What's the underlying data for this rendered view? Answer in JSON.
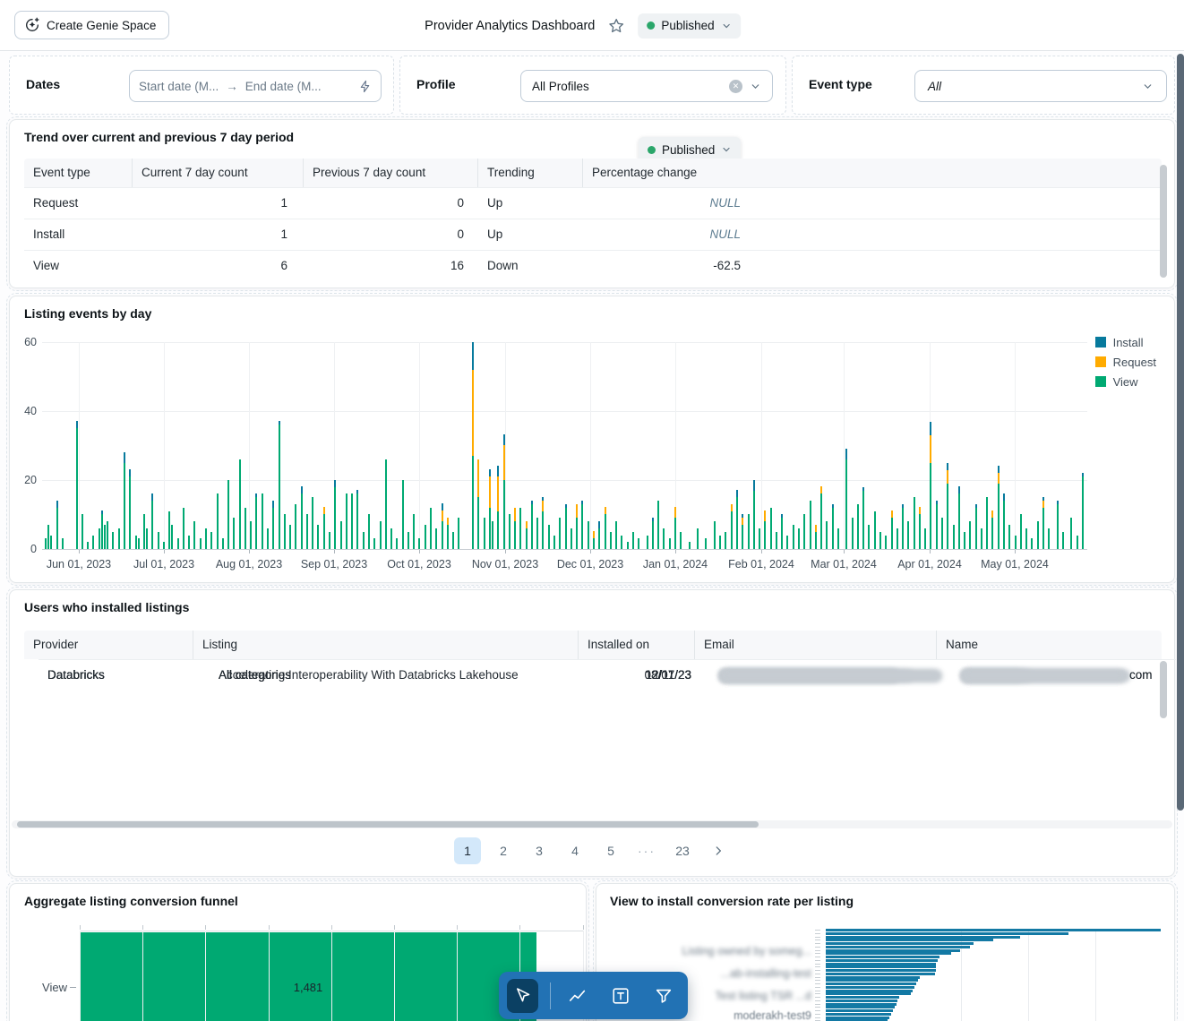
{
  "colors": {
    "green": "#00A972",
    "orange": "#FFAB00",
    "teal": "#077A9D",
    "conv_teal": "#1379A4",
    "accent_blue": "#2272B4"
  },
  "header": {
    "create_button": "Create Genie Space",
    "title": "Provider Analytics Dashboard",
    "status": "Published"
  },
  "filters": {
    "dates": {
      "label": "Dates",
      "start_placeholder": "Start date (M...",
      "end_placeholder": "End date (M...",
      "arrow": "→"
    },
    "profile": {
      "label": "Profile",
      "value": "All Profiles"
    },
    "event_type": {
      "label": "Event type",
      "value": "All"
    }
  },
  "trend": {
    "title": "Trend over current and previous 7 day period",
    "status_pill": "Published",
    "columns": [
      "Event type",
      "Current 7 day count",
      "Previous 7 day count",
      "Trending",
      "Percentage change"
    ],
    "rows": [
      {
        "event": "Request",
        "current": "1",
        "previous": "0",
        "trending": "Up",
        "change": "NULL",
        "null_change": true
      },
      {
        "event": "Install",
        "current": "1",
        "previous": "0",
        "trending": "Up",
        "change": "NULL",
        "null_change": true
      },
      {
        "event": "View",
        "current": "6",
        "previous": "16",
        "trending": "Down",
        "change": "-62.5",
        "null_change": false
      }
    ]
  },
  "events_by_day": {
    "title": "Listing events by day",
    "legend": [
      {
        "label": "Install",
        "color": "#077A9D"
      },
      {
        "label": "Request",
        "color": "#FFAB00"
      },
      {
        "label": "View",
        "color": "#00A972"
      }
    ],
    "y_ticks": [
      "0",
      "20",
      "40",
      "60"
    ],
    "x_ticks": [
      "Jun 01, 2023",
      "Jul 01, 2023",
      "Aug 01, 2023",
      "Sep 01, 2023",
      "Oct 01, 2023",
      "Nov 01, 2023",
      "Dec 01, 2023",
      "Jan 01, 2024",
      "Feb 01, 2024",
      "Mar 01, 2024",
      "Apr 01, 2024",
      "May 01, 2024"
    ]
  },
  "users": {
    "title": "Users who installed listings",
    "columns": [
      "Provider",
      "Listing",
      "Installed on",
      "Email",
      "Name"
    ],
    "rows": [
      {
        "provider": "Databricks",
        "listing": "Accelerating Interoperability With Databricks Lakehouse",
        "installed_on": "08/07/23",
        "email": "[redacted]",
        "name": "[redacted]",
        "name_suffix": "com"
      },
      {
        "provider": "Databricks",
        "listing": "All categories",
        "installed_on": "12/11/23",
        "email": "[redacted]",
        "name": "[redacted]",
        "name_suffix": ""
      },
      {
        "provider": "Databricks",
        "listing": "All categories",
        "installed_on": "12/11/23",
        "email": "[redacted]",
        "name": "[redacted]",
        "name_suffix": ""
      },
      {
        "provider": "Databricks",
        "listing": "All categories",
        "installed_on": "12/11/23",
        "email": "[redacted]",
        "name": "[redacted]",
        "name_suffix": ""
      },
      {
        "provider": "Databricks",
        "listing": "All categories",
        "installed_on": "12/11/23",
        "email": "[redacted]",
        "name": "[redacted]",
        "name_suffix": "com"
      }
    ],
    "pagination": {
      "pages": [
        "1",
        "2",
        "3",
        "4",
        "5"
      ],
      "ellipsis": "···",
      "last": "23",
      "active": "1"
    }
  },
  "funnel": {
    "title": "Aggregate listing conversion funnel",
    "category": "View",
    "value": 1481,
    "value_label": "1,481"
  },
  "conversion": {
    "title": "View to install conversion rate per listing",
    "labels": [
      "Listing owned by someg...",
      "...ab-installing-test",
      "Test listing TSR ...d",
      "moderakh-test9"
    ]
  },
  "toolbar": {
    "items": [
      "cursor",
      "line-chart",
      "text-box",
      "filter"
    ],
    "active": "cursor"
  },
  "chart_data": [
    {
      "name": "Listing events by day",
      "type": "bar",
      "stacked": true,
      "x_unit": "day",
      "day_zero": "2023-06-01",
      "series_order": [
        "View",
        "Request",
        "Install"
      ],
      "series_colors": [
        "#00A972",
        "#FFAB00",
        "#077A9D"
      ],
      "ylim": [
        0,
        60
      ],
      "x_tick_labels": [
        "Jun 01, 2023",
        "Jul 01, 2023",
        "Aug 01, 2023",
        "Sep 01, 2023",
        "Oct 01, 2023",
        "Nov 01, 2023",
        "Dec 01, 2023",
        "Jan 01, 2024",
        "Feb 01, 2024",
        "Mar 01, 2024",
        "Apr 01, 2024",
        "May 01, 2024"
      ],
      "note": "values estimated from pixels; each entry = [dayOffsetFromJun1_2023, view, request, install]",
      "bars": [
        [
          -12,
          3,
          0,
          0
        ],
        [
          -11,
          7,
          0,
          0
        ],
        [
          -10,
          4,
          0,
          0
        ],
        [
          -8,
          12,
          0,
          2
        ],
        [
          -6,
          3,
          0,
          0
        ],
        [
          -1,
          35,
          0,
          2
        ],
        [
          1,
          10,
          0,
          0
        ],
        [
          3,
          2,
          0,
          0
        ],
        [
          5,
          4,
          0,
          0
        ],
        [
          7,
          6,
          0,
          0
        ],
        [
          8,
          10,
          0,
          1
        ],
        [
          9,
          7,
          0,
          0
        ],
        [
          10,
          8,
          0,
          0
        ],
        [
          12,
          5,
          0,
          0
        ],
        [
          14,
          6,
          0,
          0
        ],
        [
          16,
          25,
          0,
          3
        ],
        [
          18,
          21,
          0,
          2
        ],
        [
          20,
          4,
          0,
          0
        ],
        [
          21,
          3,
          0,
          0
        ],
        [
          23,
          10,
          0,
          0
        ],
        [
          24,
          6,
          0,
          0
        ],
        [
          26,
          14,
          0,
          2
        ],
        [
          28,
          5,
          0,
          0
        ],
        [
          30,
          2,
          0,
          0
        ],
        [
          32,
          11,
          0,
          0
        ],
        [
          33,
          7,
          0,
          0
        ],
        [
          35,
          3,
          0,
          0
        ],
        [
          37,
          12,
          0,
          0
        ],
        [
          39,
          4,
          0,
          0
        ],
        [
          41,
          8,
          0,
          0
        ],
        [
          43,
          3,
          0,
          0
        ],
        [
          45,
          6,
          0,
          0
        ],
        [
          47,
          5,
          0,
          0
        ],
        [
          49,
          16,
          0,
          0
        ],
        [
          51,
          3,
          0,
          0
        ],
        [
          53,
          20,
          0,
          0
        ],
        [
          55,
          9,
          0,
          0
        ],
        [
          57,
          26,
          0,
          0
        ],
        [
          59,
          12,
          0,
          0
        ],
        [
          61,
          8,
          0,
          0
        ],
        [
          63,
          15,
          0,
          1
        ],
        [
          65,
          16,
          0,
          0
        ],
        [
          67,
          6,
          0,
          0
        ],
        [
          69,
          12,
          0,
          2
        ],
        [
          71,
          36,
          0,
          1
        ],
        [
          73,
          10,
          0,
          0
        ],
        [
          75,
          7,
          0,
          0
        ],
        [
          77,
          13,
          0,
          0
        ],
        [
          79,
          16,
          0,
          2
        ],
        [
          81,
          10,
          0,
          0
        ],
        [
          83,
          15,
          0,
          0
        ],
        [
          85,
          7,
          0,
          0
        ],
        [
          87,
          10,
          2,
          0
        ],
        [
          89,
          5,
          0,
          0
        ],
        [
          91,
          18,
          0,
          2
        ],
        [
          93,
          8,
          0,
          0
        ],
        [
          95,
          16,
          0,
          0
        ],
        [
          97,
          16,
          0,
          0
        ],
        [
          99,
          16,
          0,
          1
        ],
        [
          101,
          5,
          0,
          0
        ],
        [
          103,
          10,
          0,
          0
        ],
        [
          105,
          3,
          0,
          0
        ],
        [
          107,
          8,
          0,
          0
        ],
        [
          109,
          26,
          0,
          0
        ],
        [
          111,
          6,
          0,
          0
        ],
        [
          113,
          3,
          0,
          0
        ],
        [
          115,
          20,
          0,
          0
        ],
        [
          117,
          5,
          0,
          0
        ],
        [
          119,
          10,
          0,
          0
        ],
        [
          121,
          3,
          0,
          0
        ],
        [
          123,
          7,
          0,
          0
        ],
        [
          125,
          12,
          0,
          0
        ],
        [
          127,
          6,
          0,
          0
        ],
        [
          129,
          8,
          3,
          2
        ],
        [
          131,
          7,
          2,
          0
        ],
        [
          133,
          5,
          0,
          0
        ],
        [
          135,
          9,
          0,
          0
        ],
        [
          140,
          27,
          25,
          8
        ],
        [
          142,
          15,
          11,
          0
        ],
        [
          144,
          9,
          0,
          0
        ],
        [
          146,
          12,
          9,
          2
        ],
        [
          147,
          8,
          0,
          0
        ],
        [
          149,
          11,
          10,
          3
        ],
        [
          151,
          20,
          10,
          3
        ],
        [
          153,
          10,
          0,
          0
        ],
        [
          155,
          8,
          4,
          0
        ],
        [
          157,
          12,
          0,
          0
        ],
        [
          159,
          6,
          2,
          0
        ],
        [
          161,
          13,
          0,
          1
        ],
        [
          163,
          9,
          0,
          0
        ],
        [
          165,
          11,
          3,
          1
        ],
        [
          167,
          7,
          0,
          0
        ],
        [
          169,
          4,
          0,
          0
        ],
        [
          171,
          9,
          0,
          0
        ],
        [
          173,
          12,
          0,
          1
        ],
        [
          175,
          6,
          0,
          0
        ],
        [
          177,
          9,
          4,
          0
        ],
        [
          179,
          13,
          0,
          1
        ],
        [
          181,
          8,
          0,
          0
        ],
        [
          183,
          3,
          2,
          0
        ],
        [
          185,
          6,
          0,
          2
        ],
        [
          187,
          10,
          2,
          0
        ],
        [
          189,
          5,
          0,
          0
        ],
        [
          191,
          8,
          0,
          0
        ],
        [
          193,
          4,
          0,
          0
        ],
        [
          195,
          2,
          0,
          0
        ],
        [
          197,
          5,
          0,
          0
        ],
        [
          199,
          3,
          0,
          0
        ],
        [
          202,
          4,
          0,
          0
        ],
        [
          204,
          8,
          0,
          1
        ],
        [
          206,
          14,
          0,
          0
        ],
        [
          208,
          6,
          0,
          0
        ],
        [
          210,
          3,
          0,
          0
        ],
        [
          212,
          9,
          3,
          0
        ],
        [
          214,
          5,
          0,
          0
        ],
        [
          217,
          2,
          0,
          0
        ],
        [
          220,
          6,
          0,
          0
        ],
        [
          223,
          3,
          0,
          0
        ],
        [
          226,
          8,
          0,
          0
        ],
        [
          228,
          4,
          0,
          0
        ],
        [
          230,
          5,
          0,
          0
        ],
        [
          232,
          11,
          2,
          0
        ],
        [
          234,
          15,
          0,
          2
        ],
        [
          236,
          7,
          2,
          1
        ],
        [
          238,
          10,
          0,
          0
        ],
        [
          240,
          17,
          0,
          3
        ],
        [
          242,
          6,
          0,
          0
        ],
        [
          244,
          8,
          3,
          0
        ],
        [
          246,
          12,
          0,
          0
        ],
        [
          248,
          5,
          0,
          0
        ],
        [
          250,
          9,
          0,
          1
        ],
        [
          252,
          4,
          0,
          0
        ],
        [
          254,
          7,
          0,
          0
        ],
        [
          256,
          6,
          0,
          0
        ],
        [
          258,
          10,
          0,
          0
        ],
        [
          260,
          14,
          0,
          0
        ],
        [
          262,
          5,
          2,
          0
        ],
        [
          264,
          16,
          2,
          0
        ],
        [
          266,
          8,
          0,
          0
        ],
        [
          268,
          12,
          0,
          1
        ],
        [
          270,
          6,
          0,
          0
        ],
        [
          273,
          26,
          0,
          3
        ],
        [
          275,
          9,
          0,
          0
        ],
        [
          277,
          13,
          0,
          0
        ],
        [
          279,
          17,
          0,
          1
        ],
        [
          281,
          7,
          0,
          0
        ],
        [
          283,
          11,
          0,
          0
        ],
        [
          285,
          5,
          0,
          0
        ],
        [
          287,
          4,
          0,
          0
        ],
        [
          289,
          9,
          2,
          0
        ],
        [
          291,
          6,
          0,
          0
        ],
        [
          293,
          12,
          0,
          1
        ],
        [
          295,
          8,
          0,
          0
        ],
        [
          297,
          15,
          0,
          0
        ],
        [
          299,
          10,
          2,
          0
        ],
        [
          301,
          6,
          0,
          0
        ],
        [
          303,
          25,
          8,
          4
        ],
        [
          305,
          13,
          0,
          1
        ],
        [
          307,
          9,
          0,
          0
        ],
        [
          309,
          19,
          4,
          2
        ],
        [
          311,
          7,
          0,
          0
        ],
        [
          313,
          16,
          0,
          2
        ],
        [
          315,
          5,
          0,
          0
        ],
        [
          317,
          8,
          0,
          0
        ],
        [
          319,
          12,
          0,
          1
        ],
        [
          321,
          6,
          0,
          0
        ],
        [
          323,
          15,
          0,
          0
        ],
        [
          325,
          9,
          2,
          0
        ],
        [
          327,
          19,
          3,
          2
        ],
        [
          329,
          14,
          0,
          2
        ],
        [
          331,
          7,
          0,
          0
        ],
        [
          333,
          4,
          0,
          0
        ],
        [
          335,
          10,
          0,
          0
        ],
        [
          337,
          6,
          0,
          0
        ],
        [
          339,
          3,
          0,
          0
        ],
        [
          341,
          8,
          0,
          0
        ],
        [
          343,
          12,
          2,
          1
        ],
        [
          345,
          6,
          0,
          0
        ],
        [
          348,
          13,
          0,
          1
        ],
        [
          350,
          5,
          0,
          0
        ],
        [
          353,
          9,
          0,
          0
        ],
        [
          355,
          4,
          0,
          0
        ],
        [
          357,
          21,
          0,
          1
        ]
      ]
    },
    {
      "name": "Aggregate listing conversion funnel",
      "type": "bar",
      "orientation": "horizontal",
      "categories": [
        "View"
      ],
      "values": [
        1481
      ],
      "value_labels": [
        "1,481"
      ],
      "color": "#00A972",
      "note": "additional funnel stages cut off by viewport"
    },
    {
      "name": "View to install conversion rate per listing",
      "type": "bar",
      "orientation": "horizontal",
      "color": "#1379A4",
      "note": "listing names redacted/blurred; values are % of widest bar, estimated from pixels",
      "values_pct_of_max": [
        100,
        72.5,
        58,
        50,
        44,
        43,
        40,
        37.5,
        34,
        33.5,
        33,
        33,
        33,
        32.5,
        28,
        27.5,
        27,
        26.5,
        26,
        25.5,
        22,
        21.5,
        21,
        20.5,
        20,
        19.5,
        19,
        18.5,
        18,
        17.5
      ]
    }
  ]
}
